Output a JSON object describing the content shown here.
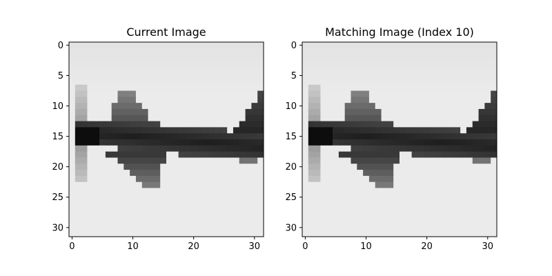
{
  "figure": {
    "background": "#ffffff",
    "cmap": "gray",
    "image_size": [
      32,
      32
    ],
    "xticks": [
      "0",
      "10",
      "20",
      "30"
    ],
    "yticks": [
      "0",
      "5",
      "10",
      "15",
      "20",
      "25",
      "30"
    ]
  },
  "panels": [
    {
      "title": "Current Image",
      "image_description": "grayscale 32x32 thumbnail of a dark airplane silhouette facing left on a light gray background"
    },
    {
      "title": "Matching Image (Index 10)",
      "image_description": "identical grayscale 32x32 thumbnail of the same airplane silhouette"
    }
  ],
  "image_pixels_hint": "procedurally drawn airplane shape"
}
